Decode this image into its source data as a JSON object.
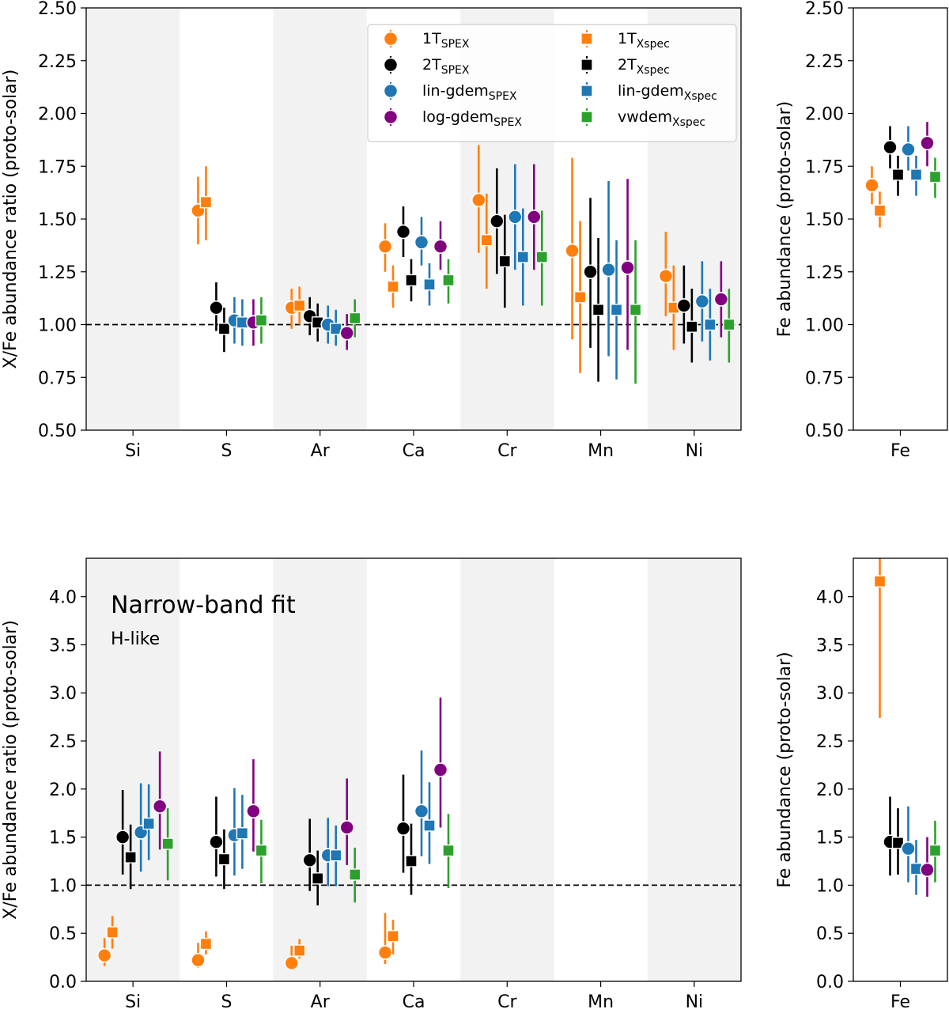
{
  "colors": {
    "1T_SPEX": "#ff7f0e",
    "2T_SPEX": "#000000",
    "lin-gdem_SPEX": "#1f77b4",
    "log-gdem_SPEX": "#800080",
    "1T_Xspec": "#ff7f0e",
    "2T_Xspec": "#000000",
    "lin-gdem_Xspec": "#1f77b4",
    "vwdem_Xspec": "#2ca02c",
    "band": "#f2f2f2"
  },
  "chart_data": [
    {
      "id": "top_main",
      "type": "scatter",
      "ylabel": "X/Fe abundance ratio (proto-solar)",
      "ylim": [
        0.5,
        2.5
      ],
      "yticks": [
        "0.50",
        "0.75",
        "1.00",
        "1.25",
        "1.50",
        "1.75",
        "2.00",
        "2.25",
        "2.50"
      ],
      "categories": [
        "Si",
        "S",
        "Ar",
        "Ca",
        "Cr",
        "Mn",
        "Ni"
      ],
      "shaded_categories": [
        "Si",
        "Ar",
        "Cr",
        "Ni"
      ],
      "reference_line": 1.0,
      "legend": {
        "position": "top-right",
        "entries": [
          {
            "series": "1T_SPEX",
            "base": "1T",
            "sub": "SPEX",
            "marker": "circle"
          },
          {
            "series": "1T_Xspec",
            "base": "1T",
            "sub": "Xspec",
            "marker": "square"
          },
          {
            "series": "2T_SPEX",
            "base": "2T",
            "sub": "SPEX",
            "marker": "circle"
          },
          {
            "series": "2T_Xspec",
            "base": "2T",
            "sub": "Xspec",
            "marker": "square"
          },
          {
            "series": "lin-gdem_SPEX",
            "base": "lin-gdem",
            "sub": "SPEX",
            "marker": "circle"
          },
          {
            "series": "lin-gdem_Xspec",
            "base": "lin-gdem",
            "sub": "Xspec",
            "marker": "square"
          },
          {
            "series": "log-gdem_SPEX",
            "base": "log-gdem",
            "sub": "SPEX",
            "marker": "circle"
          },
          {
            "series": "vwdem_Xspec",
            "base": "vwdem",
            "sub": "Xspec",
            "marker": "square"
          }
        ]
      },
      "series": [
        {
          "name": "1T_SPEX",
          "marker": "circle",
          "values": [
            null,
            1.54,
            1.08,
            1.37,
            1.59,
            1.35,
            1.23
          ],
          "err_lo": [
            null,
            1.38,
            0.98,
            1.25,
            1.34,
            0.93,
            1.04
          ],
          "err_hi": [
            null,
            1.7,
            1.17,
            1.48,
            1.85,
            1.79,
            1.44
          ]
        },
        {
          "name": "1T_Xspec",
          "marker": "square",
          "values": [
            null,
            1.58,
            1.09,
            1.18,
            1.4,
            1.13,
            1.08
          ],
          "err_lo": [
            null,
            1.4,
            1.0,
            1.08,
            1.17,
            0.77,
            0.88
          ],
          "err_hi": [
            null,
            1.75,
            1.18,
            1.28,
            1.62,
            1.49,
            1.28
          ]
        },
        {
          "name": "2T_SPEX",
          "marker": "circle",
          "values": [
            null,
            1.08,
            1.04,
            1.44,
            1.49,
            1.25,
            1.09
          ],
          "err_lo": [
            null,
            0.97,
            0.95,
            1.32,
            1.24,
            0.89,
            0.91
          ],
          "err_hi": [
            null,
            1.2,
            1.13,
            1.56,
            1.74,
            1.6,
            1.28
          ]
        },
        {
          "name": "2T_Xspec",
          "marker": "square",
          "values": [
            null,
            0.98,
            1.01,
            1.21,
            1.3,
            1.07,
            0.99
          ],
          "err_lo": [
            null,
            0.87,
            0.92,
            1.11,
            1.08,
            0.73,
            0.82
          ],
          "err_hi": [
            null,
            1.08,
            1.1,
            1.31,
            1.52,
            1.41,
            1.17
          ]
        },
        {
          "name": "lin-gdem_SPEX",
          "marker": "circle",
          "values": [
            null,
            1.02,
            1.0,
            1.39,
            1.51,
            1.26,
            1.11
          ],
          "err_lo": [
            null,
            0.91,
            0.91,
            1.28,
            1.26,
            0.85,
            0.92
          ],
          "err_hi": [
            null,
            1.13,
            1.09,
            1.51,
            1.76,
            1.68,
            1.3
          ]
        },
        {
          "name": "lin-gdem_Xspec",
          "marker": "square",
          "values": [
            null,
            1.01,
            0.98,
            1.19,
            1.32,
            1.07,
            1.0
          ],
          "err_lo": [
            null,
            0.9,
            0.9,
            1.09,
            1.09,
            0.74,
            0.83
          ],
          "err_hi": [
            null,
            1.12,
            1.07,
            1.29,
            1.55,
            1.4,
            1.17
          ]
        },
        {
          "name": "log-gdem_SPEX",
          "marker": "circle",
          "values": [
            null,
            1.01,
            0.96,
            1.37,
            1.51,
            1.27,
            1.12
          ],
          "err_lo": [
            null,
            0.9,
            0.88,
            1.26,
            1.26,
            0.88,
            0.94
          ],
          "err_hi": [
            null,
            1.12,
            1.05,
            1.49,
            1.76,
            1.69,
            1.3
          ]
        },
        {
          "name": "vwdem_Xspec",
          "marker": "square",
          "values": [
            null,
            1.02,
            1.03,
            1.21,
            1.32,
            1.07,
            1.0
          ],
          "err_lo": [
            null,
            0.91,
            0.94,
            1.1,
            1.09,
            0.72,
            0.82
          ],
          "err_hi": [
            null,
            1.13,
            1.12,
            1.31,
            1.54,
            1.4,
            1.17
          ]
        }
      ]
    },
    {
      "id": "top_fe",
      "type": "scatter",
      "ylabel": "Fe abundance (proto-solar)",
      "ylim": [
        0.5,
        2.5
      ],
      "yticks": [
        "0.50",
        "0.75",
        "1.00",
        "1.25",
        "1.50",
        "1.75",
        "2.00",
        "2.25",
        "2.50"
      ],
      "categories": [
        "Fe"
      ],
      "series": [
        {
          "name": "1T_SPEX",
          "marker": "circle",
          "values": [
            1.66
          ],
          "err_lo": [
            1.57
          ],
          "err_hi": [
            1.75
          ]
        },
        {
          "name": "1T_Xspec",
          "marker": "square",
          "values": [
            1.54
          ],
          "err_lo": [
            1.46
          ],
          "err_hi": [
            1.63
          ]
        },
        {
          "name": "2T_SPEX",
          "marker": "circle",
          "values": [
            1.84
          ],
          "err_lo": [
            1.74
          ],
          "err_hi": [
            1.94
          ]
        },
        {
          "name": "2T_Xspec",
          "marker": "square",
          "values": [
            1.71
          ],
          "err_lo": [
            1.61
          ],
          "err_hi": [
            1.8
          ]
        },
        {
          "name": "lin-gdem_SPEX",
          "marker": "circle",
          "values": [
            1.83
          ],
          "err_lo": [
            1.73
          ],
          "err_hi": [
            1.94
          ]
        },
        {
          "name": "lin-gdem_Xspec",
          "marker": "square",
          "values": [
            1.71
          ],
          "err_lo": [
            1.61
          ],
          "err_hi": [
            1.8
          ]
        },
        {
          "name": "log-gdem_SPEX",
          "marker": "circle",
          "values": [
            1.86
          ],
          "err_lo": [
            1.75
          ],
          "err_hi": [
            1.96
          ]
        },
        {
          "name": "vwdem_Xspec",
          "marker": "square",
          "values": [
            1.7
          ],
          "err_lo": [
            1.6
          ],
          "err_hi": [
            1.79
          ]
        }
      ]
    },
    {
      "id": "bottom_main",
      "type": "scatter",
      "title": "Narrow-band fit",
      "subtitle": "H-like",
      "ylabel": "X/Fe abundance ratio (proto-solar)",
      "ylim": [
        0.0,
        4.4
      ],
      "yticks": [
        "0.0",
        "0.5",
        "1.0",
        "1.5",
        "2.0",
        "2.5",
        "3.0",
        "3.5",
        "4.0"
      ],
      "categories": [
        "Si",
        "S",
        "Ar",
        "Ca",
        "Cr",
        "Mn",
        "Ni"
      ],
      "shaded_categories": [
        "Si",
        "Ar",
        "Cr",
        "Ni"
      ],
      "reference_line": 1.0,
      "series": [
        {
          "name": "1T_SPEX",
          "marker": "circle",
          "values": [
            0.27,
            0.22,
            0.19,
            0.3,
            null,
            null,
            null
          ],
          "err_lo": [
            0.16,
            0.14,
            0.12,
            0.18,
            null,
            null,
            null
          ],
          "err_hi": [
            0.45,
            0.4,
            0.37,
            0.71,
            null,
            null,
            null
          ]
        },
        {
          "name": "1T_Xspec",
          "marker": "square",
          "values": [
            0.51,
            0.39,
            0.32,
            0.47,
            null,
            null,
            null
          ],
          "err_lo": [
            0.34,
            0.28,
            0.24,
            0.28,
            null,
            null,
            null
          ],
          "err_hi": [
            0.68,
            0.52,
            0.44,
            0.64,
            null,
            null,
            null
          ]
        },
        {
          "name": "2T_SPEX",
          "marker": "circle",
          "values": [
            1.5,
            1.45,
            1.26,
            1.59,
            null,
            null,
            null
          ],
          "err_lo": [
            1.11,
            1.09,
            0.94,
            1.13,
            null,
            null,
            null
          ],
          "err_hi": [
            1.99,
            1.92,
            1.69,
            2.15,
            null,
            null,
            null
          ]
        },
        {
          "name": "2T_Xspec",
          "marker": "square",
          "values": [
            1.29,
            1.27,
            1.07,
            1.25,
            null,
            null,
            null
          ],
          "err_lo": [
            0.96,
            0.96,
            0.79,
            0.9,
            null,
            null,
            null
          ],
          "err_hi": [
            1.63,
            1.58,
            1.36,
            1.64,
            null,
            null,
            null
          ]
        },
        {
          "name": "lin-gdem_SPEX",
          "marker": "circle",
          "values": [
            1.55,
            1.52,
            1.31,
            1.77,
            null,
            null,
            null
          ],
          "err_lo": [
            1.14,
            1.1,
            0.99,
            1.3,
            null,
            null,
            null
          ],
          "err_hi": [
            2.06,
            2.01,
            1.7,
            2.4,
            null,
            null,
            null
          ]
        },
        {
          "name": "lin-gdem_Xspec",
          "marker": "square",
          "values": [
            1.64,
            1.54,
            1.31,
            1.62,
            null,
            null,
            null
          ],
          "err_lo": [
            1.26,
            1.17,
            0.99,
            1.22,
            null,
            null,
            null
          ],
          "err_hi": [
            2.05,
            1.94,
            1.62,
            2.07,
            null,
            null,
            null
          ]
        },
        {
          "name": "log-gdem_SPEX",
          "marker": "circle",
          "values": [
            1.82,
            1.77,
            1.6,
            2.2,
            null,
            null,
            null
          ],
          "err_lo": [
            1.37,
            1.35,
            1.21,
            1.6,
            null,
            null,
            null
          ],
          "err_hi": [
            2.39,
            2.31,
            2.11,
            2.95,
            null,
            null,
            null
          ]
        },
        {
          "name": "vwdem_Xspec",
          "marker": "square",
          "values": [
            1.43,
            1.36,
            1.11,
            1.36,
            null,
            null,
            null
          ],
          "err_lo": [
            1.05,
            1.02,
            0.82,
            0.97,
            null,
            null,
            null
          ],
          "err_hi": [
            1.8,
            1.68,
            1.39,
            1.74,
            null,
            null,
            null
          ]
        }
      ]
    },
    {
      "id": "bottom_fe",
      "type": "scatter",
      "ylabel": "Fe abundance (proto-solar)",
      "ylim": [
        0.0,
        4.4
      ],
      "yticks": [
        "0.0",
        "0.5",
        "1.0",
        "1.5",
        "2.0",
        "2.5",
        "3.0",
        "3.5",
        "4.0"
      ],
      "categories": [
        "Fe"
      ],
      "series": [
        {
          "name": "1T_SPEX",
          "marker": "circle",
          "values": [
            null
          ],
          "err_lo": [
            null
          ],
          "err_hi": [
            null
          ]
        },
        {
          "name": "1T_Xspec",
          "marker": "square",
          "values": [
            4.16
          ],
          "err_lo": [
            2.74
          ],
          "err_hi": [
            4.4
          ]
        },
        {
          "name": "2T_SPEX",
          "marker": "circle",
          "values": [
            1.45
          ],
          "err_lo": [
            1.1
          ],
          "err_hi": [
            1.92
          ]
        },
        {
          "name": "2T_Xspec",
          "marker": "square",
          "values": [
            1.44
          ],
          "err_lo": [
            1.11
          ],
          "err_hi": [
            1.8
          ]
        },
        {
          "name": "lin-gdem_SPEX",
          "marker": "circle",
          "values": [
            1.38
          ],
          "err_lo": [
            1.03
          ],
          "err_hi": [
            1.82
          ]
        },
        {
          "name": "lin-gdem_Xspec",
          "marker": "square",
          "values": [
            1.17
          ],
          "err_lo": [
            0.9
          ],
          "err_hi": [
            1.47
          ]
        },
        {
          "name": "log-gdem_SPEX",
          "marker": "circle",
          "values": [
            1.16
          ],
          "err_lo": [
            0.88
          ],
          "err_hi": [
            1.5
          ]
        },
        {
          "name": "vwdem_Xspec",
          "marker": "square",
          "values": [
            1.36
          ],
          "err_lo": [
            1.03
          ],
          "err_hi": [
            1.67
          ]
        }
      ]
    }
  ]
}
